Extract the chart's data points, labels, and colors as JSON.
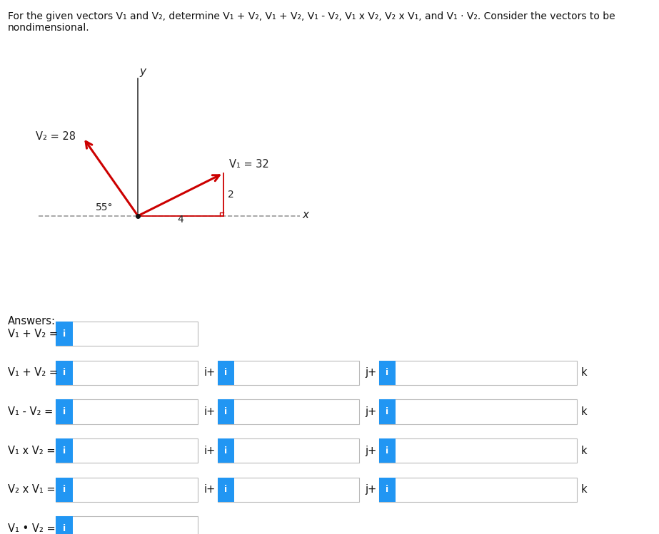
{
  "bg_color": "#ffffff",
  "arrow_color": "#cc0000",
  "dashed_color": "#999999",
  "blue_box_color": "#2196F3",
  "V1_label": "V₁ = 32",
  "V2_label": "V₂ = 28",
  "angle_label": "55°",
  "triangle_horiz": "4",
  "triangle_vert": "2",
  "x_label": "x",
  "y_label": "y",
  "answers_label": "Answers:",
  "row_labels": [
    "V₁ + V₂ =",
    "V₁ + V₂ =",
    "V₁ - V₂ =",
    "V₁ x V₂ =",
    "V₂ x V₁ =",
    "V₁ • V₂ ="
  ],
  "row_n_fields": [
    1,
    3,
    3,
    3,
    3,
    1
  ],
  "title_line1": "For the given vectors V₁ and V₂, determine V₁ + V₂, V₁ + V₂, V₁ - V₂, V₁ x V₂, V₂ x V₁, and V₁ · V₂. Consider the vectors to be",
  "title_line2": "nondimensional."
}
